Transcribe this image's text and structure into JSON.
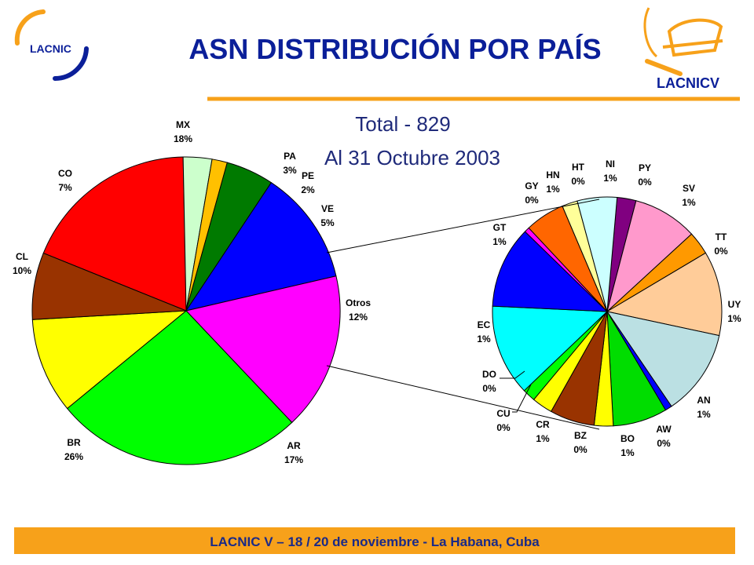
{
  "header": {
    "title": "ASN DISTRIBUCIÓN POR PAÍS",
    "logo_left": "LACNIC",
    "logo_right": "LACNICV"
  },
  "subtitle": {
    "total": "Total - 829",
    "date": "Al 31 Octubre 2003"
  },
  "footer": {
    "text": "LACNIC V – 18 / 20 de noviembre - La Habana, Cuba"
  },
  "colors": {
    "title": "#0b1f99",
    "subtitle": "#1f2a7a",
    "rule": "#f7a11a",
    "footer_bg": "#f7a11a",
    "footer_text": "#1a2a88"
  },
  "chart_data": [
    {
      "type": "pie",
      "name": "main",
      "slices": [
        {
          "label": "MX",
          "pct_label": "18%",
          "value": 18.5,
          "color": "#ff0000"
        },
        {
          "label": "PA",
          "pct_label": "3%",
          "value": 3.0,
          "color": "#ccffcc"
        },
        {
          "label": "PE",
          "pct_label": "2%",
          "value": 1.6,
          "color": "#ffc000"
        },
        {
          "label": "VE",
          "pct_label": "5%",
          "value": 5.0,
          "color": "#007a00"
        },
        {
          "label": "Otros",
          "pct_label": "12%",
          "value": 12.0,
          "color": "#0000ff"
        },
        {
          "label": "AR",
          "pct_label": "17%",
          "value": 16.5,
          "color": "#ff00ff"
        },
        {
          "label": "BR",
          "pct_label": "26%",
          "value": 26.0,
          "color": "#00ff00"
        },
        {
          "label": "CL",
          "pct_label": "10%",
          "value": 10.0,
          "color": "#ffff00"
        },
        {
          "label": "CO",
          "pct_label": "7%",
          "value": 7.0,
          "color": "#993300"
        }
      ]
    },
    {
      "type": "pie",
      "name": "otros-breakdown",
      "slices": [
        {
          "label": "PY",
          "pct_label": "0%",
          "value": 2.2,
          "color": "#800080"
        },
        {
          "label": "SV",
          "pct_label": "1%",
          "value": 7.5,
          "color": "#ff99cc"
        },
        {
          "label": "TT",
          "pct_label": "0%",
          "value": 2.7,
          "color": "#ff9900"
        },
        {
          "label": "UY",
          "pct_label": "1%",
          "value": 9.8,
          "color": "#ffcc99"
        },
        {
          "label": "AN",
          "pct_label": "1%",
          "value": 10.0,
          "color": "#bbe0e3"
        },
        {
          "label": "AW",
          "pct_label": "0%",
          "value": 0.8,
          "color": "#0000ff"
        },
        {
          "label": "BO",
          "pct_label": "1%",
          "value": 6.3,
          "color": "#00dd00"
        },
        {
          "label": "BZ",
          "pct_label": "0%",
          "value": 2.2,
          "color": "#ffff00"
        },
        {
          "label": "CR",
          "pct_label": "1%",
          "value": 5.2,
          "color": "#993300"
        },
        {
          "label": "CU",
          "pct_label": "0%",
          "value": 2.4,
          "color": "#ffff00"
        },
        {
          "label": "DO",
          "pct_label": "0%",
          "value": 1.5,
          "color": "#00ff00"
        },
        {
          "label": "EC",
          "pct_label": "1%",
          "value": 10.6,
          "color": "#00ffff"
        },
        {
          "label": "GT",
          "pct_label": "1%",
          "value": 9.5,
          "color": "#0000ff"
        },
        {
          "label": "GY",
          "pct_label": "0%",
          "value": 0.6,
          "color": "#ff00ff"
        },
        {
          "label": "HN",
          "pct_label": "1%",
          "value": 4.6,
          "color": "#ff6600"
        },
        {
          "label": "HT",
          "pct_label": "0%",
          "value": 1.8,
          "color": "#ffff99"
        },
        {
          "label": "NI",
          "pct_label": "1%",
          "value": 4.6,
          "color": "#ccffff"
        }
      ]
    }
  ]
}
